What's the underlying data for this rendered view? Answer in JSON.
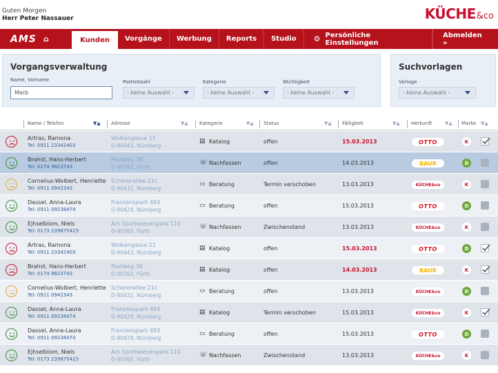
{
  "header": {
    "greeting": "Guten Morgen",
    "user": "Herr Peter Nassauer",
    "logo_main": "KÜCHE",
    "logo_sub": "&co"
  },
  "nav": {
    "brand": "AMS",
    "items": [
      {
        "label": "Kunden",
        "active": true
      },
      {
        "label": "Vorgänge"
      },
      {
        "label": "Werbung"
      },
      {
        "label": "Reports"
      },
      {
        "label": "Studio"
      },
      {
        "label": "Persönliche Einstellungen",
        "icon": "gear-icon"
      }
    ],
    "logout": "Abmelden »"
  },
  "search": {
    "title": "Vorgangsverwaltung",
    "name_label": "Name, Vorname",
    "name_value": "Merb",
    "plz_label": "Postleitzahl",
    "plz_value": "- keine Auswahl -",
    "kategorie_label": "Kategorie",
    "kategorie_value": "- keine Auswahl -",
    "wichtigkeit_label": "Wichtigkeit",
    "wichtigkeit_value": "- keine Auswahl -"
  },
  "vorlagen": {
    "title": "Suchvorlagen",
    "label": "Vorlage",
    "value": "- keine Auswahl -"
  },
  "table": {
    "columns": [
      "Name / Telefon",
      "Adresse",
      "Kategorie",
      "Status",
      "Fälligkeit",
      "Herkunft",
      "Marke"
    ],
    "rows": [
      {
        "mood": "sad",
        "name": "Artras, Ramona",
        "tel": "Tel: 0911 23342403",
        "addr1": "Wolkengasse 11",
        "addr2": "D-90443, Nürnberg",
        "cat_icon": "book-icon",
        "cat": "Katalog",
        "status": "offen",
        "due": "15.03.2013",
        "late": true,
        "brand": "otto",
        "brand_label": "OTTO",
        "marke": "K",
        "check": "on"
      },
      {
        "mood": "happy",
        "name": "Brahst, Hans-Herbert",
        "tel": "Tel: 0174 9823743",
        "addr1": "Postweg 36",
        "addr2": "D-90762, Fürth",
        "cat_icon": "phone-icon",
        "cat": "Nachfassen",
        "status": "offen",
        "due": "14.03.2013",
        "late": false,
        "brand": "baur",
        "brand_label": "BAUR",
        "marke": "D",
        "check": "off",
        "selected": true
      },
      {
        "mood": "neutral",
        "name": "Cornelius-Wolbert, Henriette",
        "tel": "Tel: 0911 0942343",
        "addr1": "Schererallee 21c",
        "addr2": "D-90431, Nürnberg",
        "cat_icon": "chat-icon",
        "cat": "Beratung",
        "status": "Termin verschoben",
        "due": "13.03.2013",
        "late": false,
        "brand": "kueche",
        "brand_label": "KÜCHE&co",
        "marke": "K",
        "check": "off"
      },
      {
        "mood": "happy",
        "name": "Dassel, Anna-Laura",
        "tel": "Tel: 0911 09238474",
        "addr1": "Franzenspark 493",
        "addr2": "D-90429, Nürnberg",
        "cat_icon": "chat-icon",
        "cat": "Beratung",
        "status": "offen",
        "due": "15.03.2013",
        "late": false,
        "brand": "otto",
        "brand_label": "OTTO",
        "marke": "D",
        "check": "off"
      },
      {
        "mood": "happy",
        "name": "Ejhselblom, Niels",
        "tel": "Tel: 0173 239875423",
        "addr1": "Am Sportwiesenpark 110",
        "addr2": "D-90765, Fürth",
        "cat_icon": "phone-icon",
        "cat": "Nachfassen",
        "status": "Zwischenstand",
        "due": "13.03.2013",
        "late": false,
        "brand": "kueche",
        "brand_label": "KÜCHE&co",
        "marke": "K",
        "check": "off"
      },
      {
        "mood": "sad",
        "name": "Artras, Ramona",
        "tel": "Tel: 0911 23342403",
        "addr1": "Wolkengasse 11",
        "addr2": "D-90443, Nürnberg",
        "cat_icon": "book-icon",
        "cat": "Katalog",
        "status": "offen",
        "due": "15.03.2013",
        "late": true,
        "brand": "otto",
        "brand_label": "OTTO",
        "marke": "D",
        "check": "on"
      },
      {
        "mood": "sad",
        "name": "Brahst, Hans-Herbert",
        "tel": "Tel: 0174 9823743",
        "addr1": "Postweg 36",
        "addr2": "D-90762, Fürth",
        "cat_icon": "book-icon",
        "cat": "Katalog",
        "status": "offen",
        "due": "14.03.2013",
        "late": true,
        "brand": "baur",
        "brand_label": "BAUR",
        "marke": "K",
        "check": "on"
      },
      {
        "mood": "neutral",
        "name": "Cornelius-Wolbert, Henriette",
        "tel": "Tel: 0911 0942343",
        "addr1": "Schererallee 21c",
        "addr2": "D-90431, Nürnberg",
        "cat_icon": "chat-icon",
        "cat": "Beratung",
        "status": "offen",
        "due": "13.03.2013",
        "late": false,
        "brand": "kueche",
        "brand_label": "KÜCHE&co",
        "marke": "D",
        "check": "off"
      },
      {
        "mood": "happy",
        "name": "Dassel, Anna-Laura",
        "tel": "Tel: 0911 09238474",
        "addr1": "Franzenspark 493",
        "addr2": "D-90429, Nürnberg",
        "cat_icon": "book-icon",
        "cat": "Katalog",
        "status": "Termin verschoben",
        "due": "15.03.2013",
        "late": false,
        "brand": "kueche",
        "brand_label": "KÜCHE&co",
        "marke": "K",
        "check": "on"
      },
      {
        "mood": "happy",
        "name": "Dassel, Anna-Laura",
        "tel": "Tel: 0911 09238474",
        "addr1": "Franzenspark 493",
        "addr2": "D-90429, Nürnberg",
        "cat_icon": "chat-icon",
        "cat": "Beratung",
        "status": "offen",
        "due": "15.03.2013",
        "late": false,
        "brand": "otto",
        "brand_label": "OTTO",
        "marke": "D",
        "check": "off"
      },
      {
        "mood": "happy",
        "name": "Ejhselblom, Niels",
        "tel": "Tel: 0173 239875423",
        "addr1": "Am Sportwiesenpark 110",
        "addr2": "D-90765, Fürth",
        "cat_icon": "phone-icon",
        "cat": "Nachfassen",
        "status": "Zwischenstand",
        "due": "13.03.2013",
        "late": false,
        "brand": "kueche",
        "brand_label": "KÜCHE&co",
        "marke": "K",
        "check": "off"
      }
    ]
  }
}
